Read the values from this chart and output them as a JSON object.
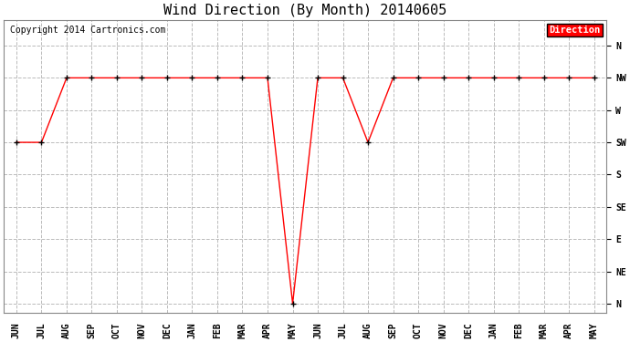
{
  "title": "Wind Direction (By Month) 20140605",
  "copyright": "Copyright 2014 Cartronics.com",
  "legend_label": "Direction",
  "legend_bg": "#ff0000",
  "legend_text_color": "#ffffff",
  "x_labels": [
    "JUN",
    "JUL",
    "AUG",
    "SEP",
    "OCT",
    "NOV",
    "DEC",
    "JAN",
    "FEB",
    "MAR",
    "APR",
    "MAY",
    "JUN",
    "JUL",
    "AUG",
    "SEP",
    "OCT",
    "NOV",
    "DEC",
    "JAN",
    "FEB",
    "MAR",
    "APR",
    "MAY"
  ],
  "y_labels": [
    "N",
    "NW",
    "W",
    "SW",
    "S",
    "SE",
    "E",
    "NE",
    "N"
  ],
  "y_values": [
    8,
    7,
    6,
    5,
    4,
    3,
    2,
    1,
    0
  ],
  "data_y_numeric": [
    5,
    5,
    7,
    7,
    7,
    7,
    7,
    7,
    7,
    7,
    7,
    0,
    7,
    7,
    5,
    7,
    7,
    7,
    7,
    7,
    7,
    7,
    7,
    7
  ],
  "line_color": "#ff0000",
  "marker": "+",
  "marker_color": "#000000",
  "marker_size": 5,
  "marker_lw": 1.0,
  "bg_color": "#ffffff",
  "grid_color": "#bbbbbb",
  "grid_style": "--",
  "title_fontsize": 11,
  "axis_label_fontsize": 7,
  "copyright_fontsize": 7
}
